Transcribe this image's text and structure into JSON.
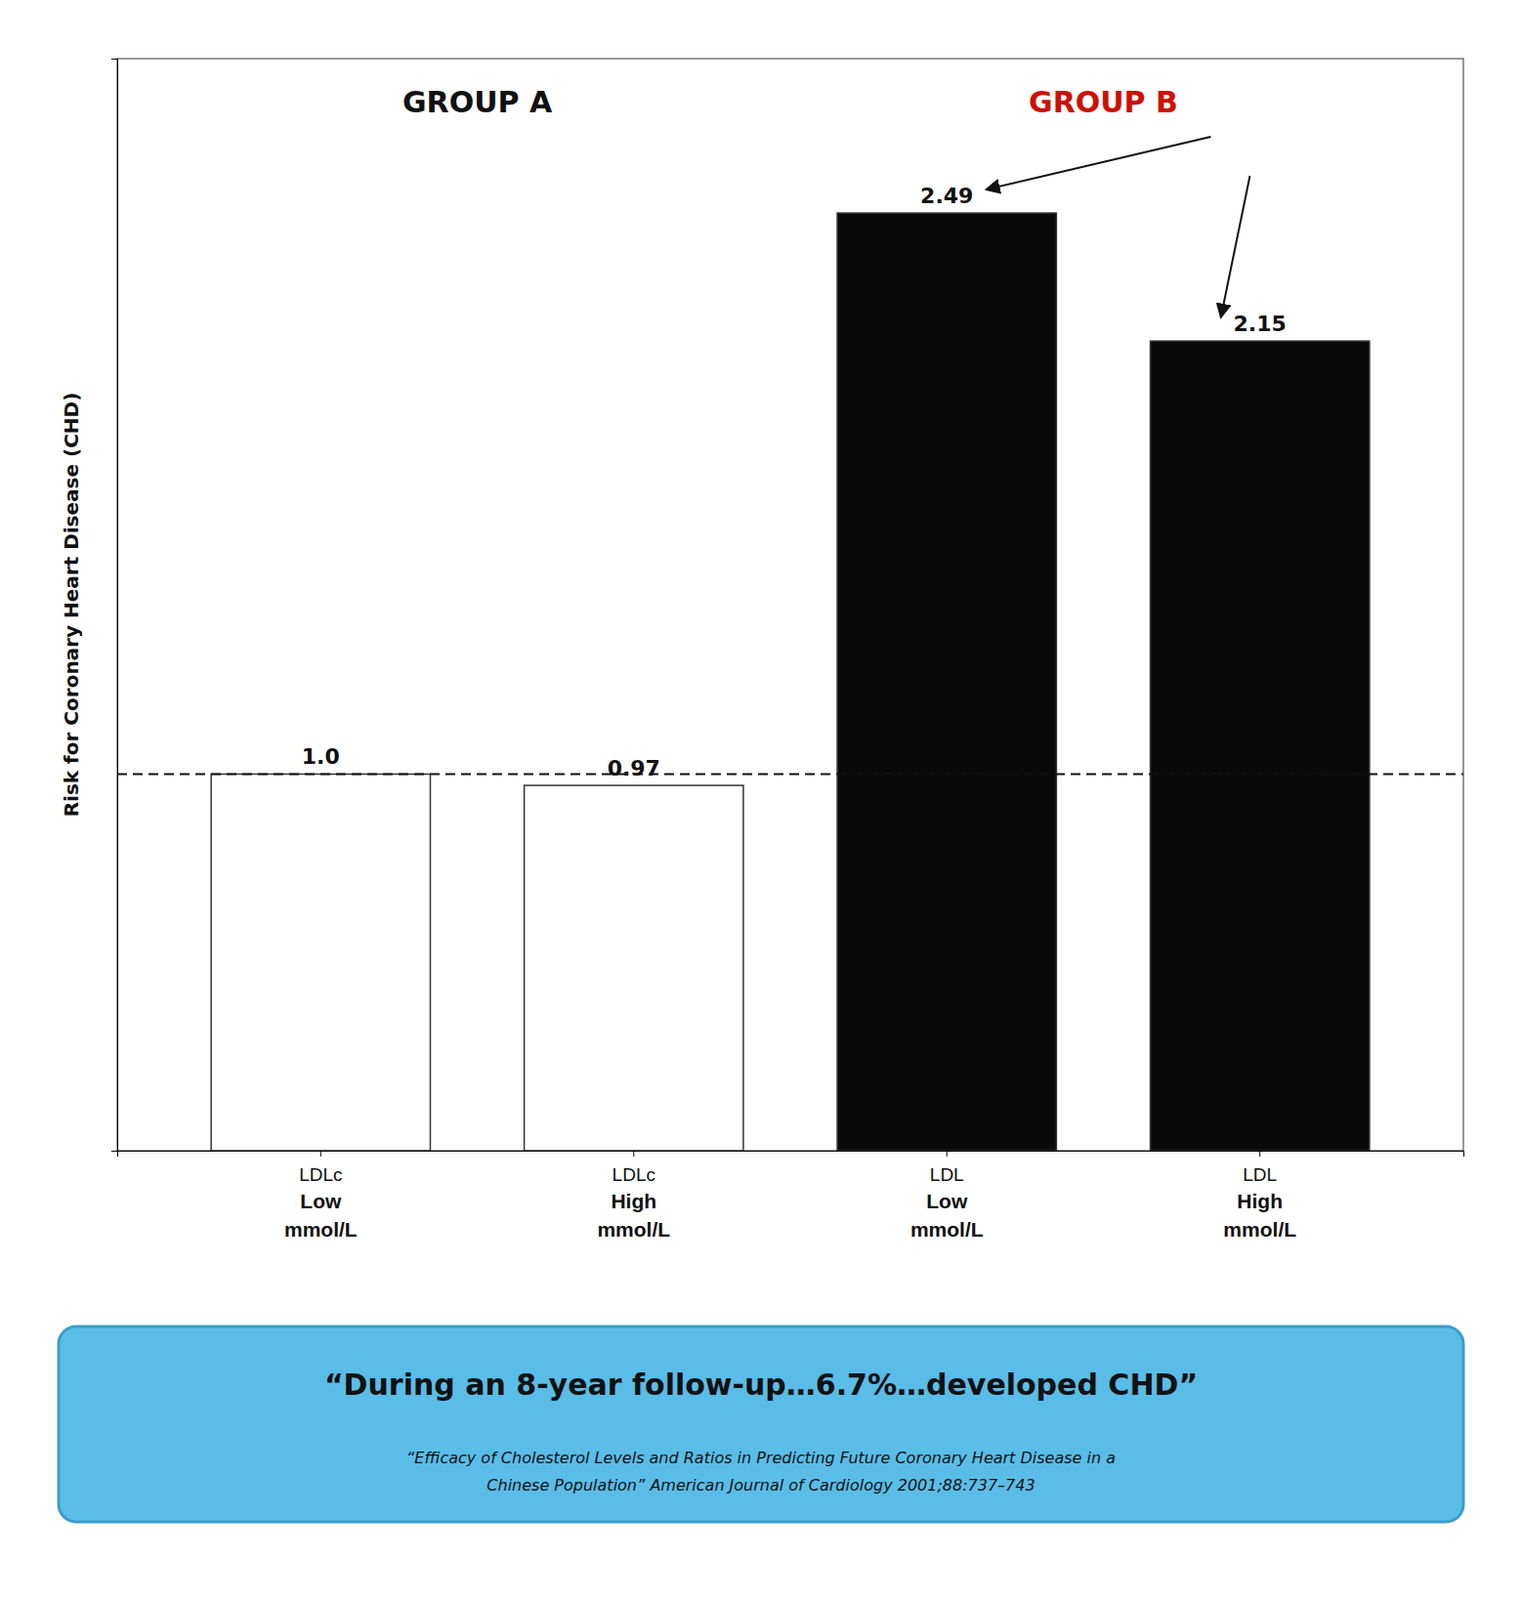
{
  "chart_data": {
    "type": "bar",
    "categories": [
      "LDLc\nLow\nmmol/L",
      "LDLc\nHigh\nmmol/L",
      "LDL\nLow\nmmol/L",
      "LDL\nHigh\nmmol/L"
    ],
    "values": [
      1.0,
      0.97,
      2.49,
      2.15
    ],
    "value_labels": [
      "1.0",
      "0.97",
      "2.49",
      "2.15"
    ],
    "data_labels": true,
    "colors": [
      "#ffffff",
      "#ffffff",
      "#0a0a0a",
      "#0a0a0a"
    ],
    "ylabel": "Risk for Coronary Heart Disease (CHD)",
    "ylim": [
      0,
      2.9
    ],
    "yticks": [],
    "tick_labels": "x",
    "grid": false,
    "reference_line": 1.0,
    "groups": [
      {
        "label": "GROUP A",
        "color": "#111111"
      },
      {
        "label": "GROUP B",
        "color": "#cc1100"
      }
    ],
    "annotations": [
      "“During an 8-year follow-up…6.7%…developed CHD”",
      "“Efficacy of Cholesterol Levels and Ratios in Predicting Future Coronary Heart Disease in a",
      "Chinese Population”   American Journal of Cardiology 2001;88:737–743"
    ]
  }
}
